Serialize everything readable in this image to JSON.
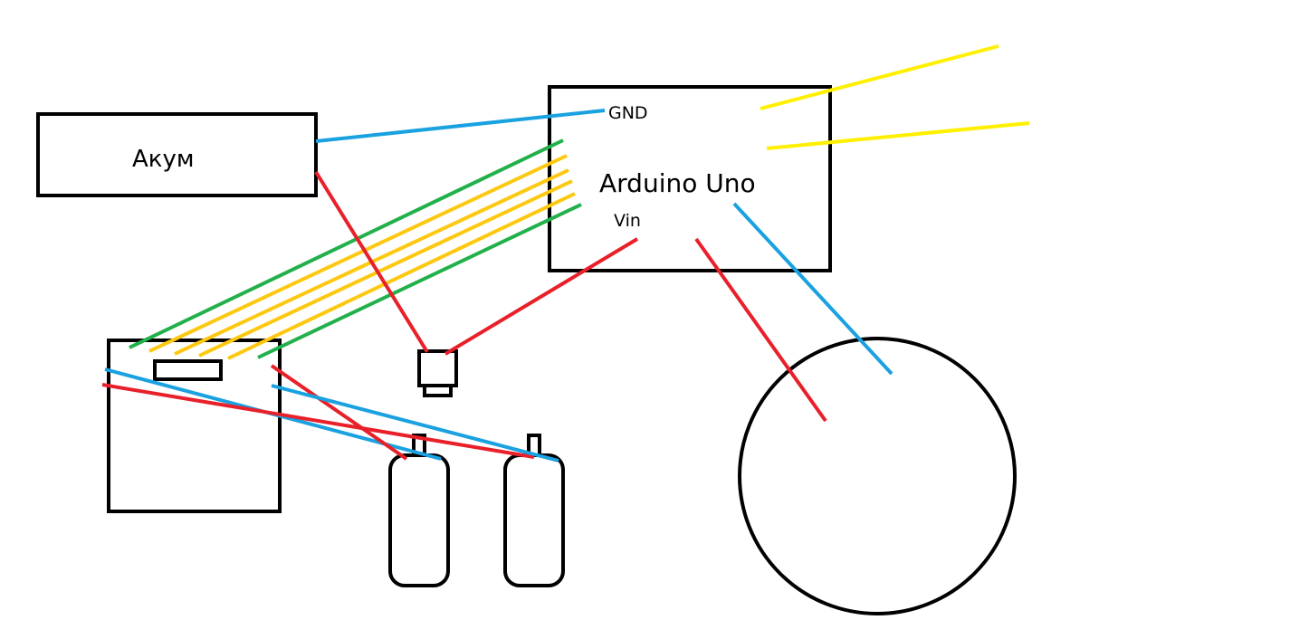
{
  "labels": {
    "battery": "Акум",
    "board": "Arduino Uno",
    "gnd_pin": "GND",
    "vin_pin": "Vin"
  },
  "colors": {
    "background": "#ffffff",
    "outline": "#000000",
    "wire_blue": "#1aa1e0",
    "wire_red": "#e8202a",
    "wire_green": "#22b04b",
    "wire_yellow": "#fdc80f",
    "wire_bright_yellow": "#fff000"
  },
  "components": [
    "battery-box",
    "arduino-board",
    "driver-module",
    "switch-connector",
    "motor-left",
    "motor-right",
    "wheel-circle"
  ]
}
